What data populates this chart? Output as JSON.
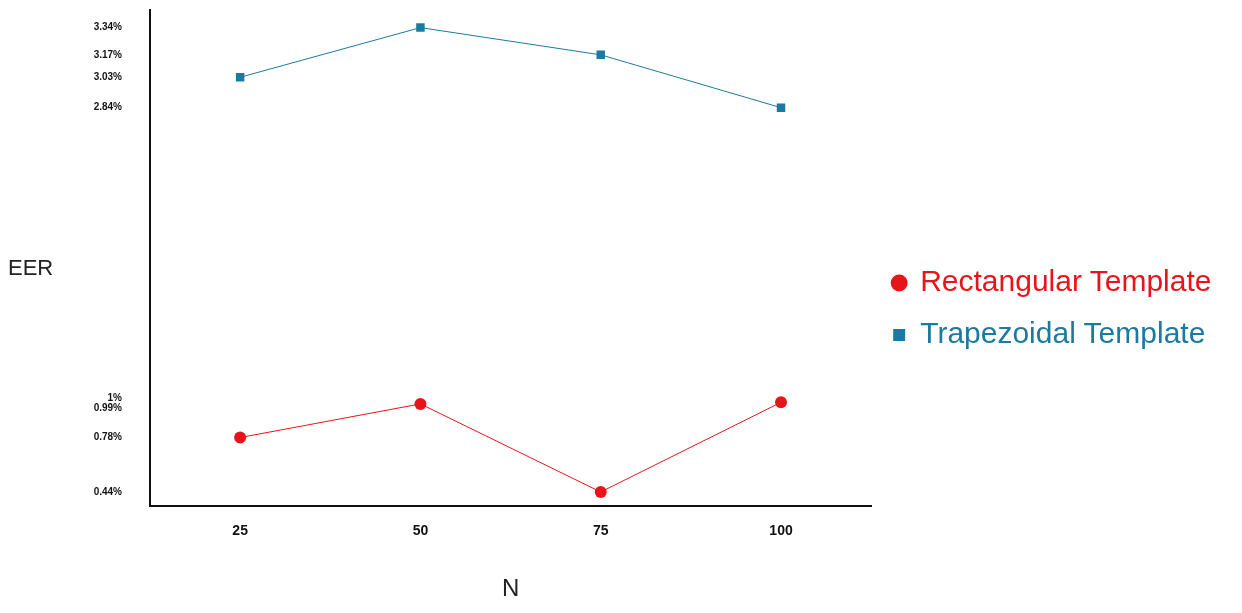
{
  "chart_data": {
    "type": "line",
    "xlabel": "N",
    "ylabel": "EER",
    "categories": [
      "25",
      "50",
      "75",
      "100"
    ],
    "series": [
      {
        "name": "Rectangular Template",
        "color": "#e8141b",
        "marker": "circle",
        "values": [
          0.78,
          0.99,
          0.44,
          1
        ]
      },
      {
        "name": "Trapezoidal Template",
        "color": "#1a7aa0",
        "marker": "square",
        "values": [
          3.03,
          3.34,
          3.17,
          2.84
        ]
      }
    ],
    "ylim": [
      0.35,
      3.45
    ],
    "yticks": [
      {
        "value": 0.44,
        "label": "0.44%"
      },
      {
        "value": 0.78,
        "label": "0.78%"
      },
      {
        "value": 0.99,
        "label": "0.99%"
      },
      {
        "value": 1,
        "label": "1%"
      },
      {
        "value": 2.84,
        "label": "2.84%"
      },
      {
        "value": 3.03,
        "label": "3.03%"
      },
      {
        "value": 3.17,
        "label": "3.17%"
      },
      {
        "value": 3.34,
        "label": "3.34%"
      }
    ],
    "grid": false,
    "legend": "right",
    "line_style": "solid"
  }
}
